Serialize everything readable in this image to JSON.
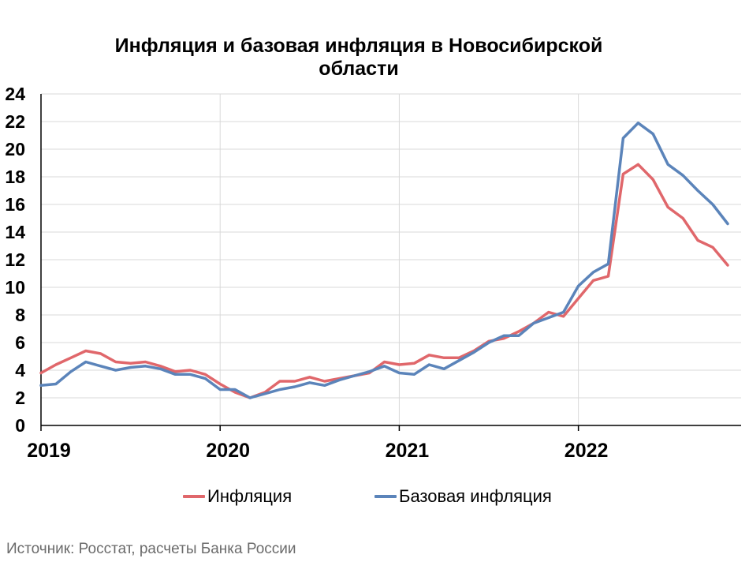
{
  "chart_data": {
    "type": "line",
    "title": "Инфляция и базовая инфляция в Новосибирской области",
    "xlabel": "",
    "ylabel": "",
    "ylim": [
      0,
      24
    ],
    "yticks": [
      "0",
      "2",
      "4",
      "6",
      "8",
      "10",
      "12",
      "14",
      "16",
      "18",
      "20",
      "22",
      "24"
    ],
    "x_tick_labels": [
      "2019",
      "2020",
      "2021",
      "2022"
    ],
    "grid": true,
    "legend_placement": "bottom",
    "series": [
      {
        "name": "Инфляция",
        "color": "#e0676b",
        "values": [
          3.8,
          4.4,
          4.9,
          5.4,
          5.2,
          4.6,
          4.5,
          4.6,
          4.3,
          3.9,
          4.0,
          3.7,
          3.0,
          2.4,
          2.0,
          2.4,
          3.2,
          3.2,
          3.5,
          3.2,
          3.4,
          3.6,
          3.8,
          4.6,
          4.4,
          4.5,
          5.1,
          4.9,
          4.9,
          5.4,
          6.1,
          6.3,
          6.8,
          7.4,
          8.2,
          7.9,
          9.2,
          10.5,
          10.8,
          18.2,
          18.9,
          17.8,
          15.8,
          15.0,
          13.4,
          12.9,
          11.6
        ]
      },
      {
        "name": "Базовая инфляция",
        "color": "#5b84ba",
        "values": [
          2.9,
          3.0,
          3.9,
          4.6,
          4.3,
          4.0,
          4.2,
          4.3,
          4.1,
          3.7,
          3.7,
          3.4,
          2.6,
          2.6,
          2.0,
          2.3,
          2.6,
          2.8,
          3.1,
          2.9,
          3.3,
          3.6,
          3.9,
          4.3,
          3.8,
          3.7,
          4.4,
          4.1,
          4.7,
          5.3,
          6.0,
          6.5,
          6.5,
          7.4,
          7.8,
          8.2,
          10.1,
          11.1,
          11.7,
          20.8,
          21.9,
          21.1,
          18.9,
          18.1,
          17.0,
          16.0,
          14.6
        ]
      }
    ]
  },
  "source_note": "Источник: Росстат, расчеты Банка России"
}
